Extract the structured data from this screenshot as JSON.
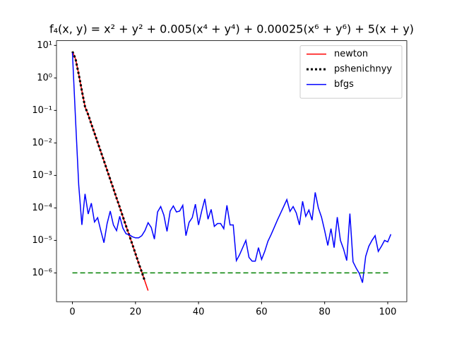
{
  "chart_data": {
    "type": "line",
    "title": "f₄(x, y) = x² + y² + 0.005(x⁴ + y⁴) + 0.00025(x⁶ + y⁶) + 5(x + y)",
    "log_y": true,
    "xlim": [
      -5.05,
      106.05
    ],
    "ylim": [
      1.3e-07,
      14
    ],
    "xticks": [
      0,
      20,
      40,
      60,
      80,
      100
    ],
    "yticks": [
      {
        "value": 1e-06,
        "label": "10⁻⁶"
      },
      {
        "value": 1e-05,
        "label": "10⁻⁵"
      },
      {
        "value": 0.0001,
        "label": "10⁻⁴"
      },
      {
        "value": 0.001,
        "label": "10⁻³"
      },
      {
        "value": 0.01,
        "label": "10⁻²"
      },
      {
        "value": 0.1,
        "label": "10⁻¹"
      },
      {
        "value": 1,
        "label": "10⁰"
      },
      {
        "value": 10,
        "label": "10¹"
      }
    ],
    "grid": false,
    "legend": "upper right",
    "series": [
      {
        "name": "newton",
        "color": "#ff0000",
        "style": "solid",
        "values": [
          6.5,
          3.8,
          1.3,
          0.4,
          0.13,
          0.074,
          0.038,
          0.02,
          0.0104,
          0.0054,
          0.0028,
          0.00145,
          0.00075,
          0.00039,
          0.0002,
          0.000105,
          5.4e-05,
          2.8e-05,
          1.46e-05,
          7.6e-06,
          3.9e-06,
          2e-06,
          1.06e-06,
          5.5e-07,
          2.85e-07
        ]
      },
      {
        "name": "pshenichnyy",
        "color": "#000000",
        "style": "dotted",
        "values": [
          6.5,
          3.8,
          1.3,
          0.4,
          0.13,
          0.074,
          0.038,
          0.02,
          0.0104,
          0.0054,
          0.0028,
          0.00145,
          0.00075,
          0.00039,
          0.0002,
          0.000105,
          5.4e-05,
          2.8e-05,
          1.46e-05,
          7.6e-06,
          3.9e-06,
          2e-06,
          1.06e-06,
          5.5e-07
        ]
      },
      {
        "name": "bfgs",
        "color": "#0000ff",
        "style": "solid",
        "values": [
          6,
          0.05,
          0.0005,
          3e-05,
          0.00027,
          6.5e-05,
          0.00014,
          3.7e-05,
          5e-05,
          2e-05,
          8.5e-06,
          3.3e-05,
          8e-05,
          3e-05,
          2e-05,
          5.5e-05,
          2.4e-05,
          1.6e-05,
          1.5e-05,
          1.3e-05,
          1.2e-05,
          1.2e-05,
          1.4e-05,
          2e-05,
          3.5e-05,
          2.5e-05,
          1.1e-05,
          7.5e-05,
          0.00011,
          6e-05,
          1.9e-05,
          8e-05,
          0.000115,
          7.5e-05,
          8e-05,
          0.00012,
          1.4e-05,
          3.6e-05,
          5e-05,
          0.00013,
          3e-05,
          8e-05,
          0.00019,
          4.5e-05,
          9e-05,
          2.7e-05,
          3.3e-05,
          3.3e-05,
          2.3e-05,
          0.00012,
          3e-05,
          3e-05,
          2.4e-06,
          3.6e-06,
          6e-06,
          1e-05,
          3e-06,
          2.3e-06,
          2.3e-06,
          6e-06,
          2.6e-06,
          4.6e-06,
          9.4e-06,
          1.5e-05,
          2.5e-05,
          4.2e-05,
          6.8e-05,
          0.00011,
          0.00018,
          7.8e-05,
          0.00011,
          7e-05,
          3e-05,
          0.00016,
          5.5e-05,
          8.6e-05,
          4.2e-05,
          0.0003,
          0.0001,
          5.2e-05,
          2e-05,
          7e-06,
          2.3e-05,
          6e-06,
          5.2e-05,
          1e-05,
          5.4e-06,
          2.4e-06,
          6.7e-05,
          2.2e-06,
          1.4e-06,
          9.6e-07,
          5e-07,
          3.2e-06,
          6.6e-06,
          1e-05,
          1.4e-05,
          4.6e-06,
          6.6e-06,
          1e-05,
          9e-06,
          1.55e-05
        ]
      }
    ],
    "hline": {
      "y": 1e-06,
      "x": [
        0,
        101
      ],
      "color": "#008000",
      "style": "dashed"
    }
  }
}
